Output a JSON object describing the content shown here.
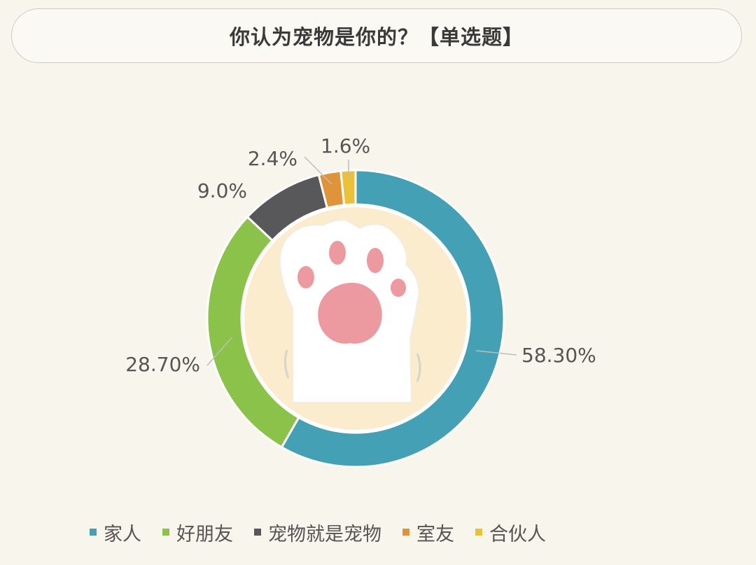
{
  "header": {
    "title": "你认为宠物是你的？【单选题】"
  },
  "chart_data": {
    "type": "pie",
    "variant": "donut",
    "legend_position": "bottom",
    "slices": [
      {
        "name": "家人",
        "value": 58.3,
        "label": "58.30%",
        "color": "#44a0b5"
      },
      {
        "name": "好朋友",
        "value": 28.7,
        "label": "28.70%",
        "color": "#8bc24a"
      },
      {
        "name": "宠物就是宠物",
        "value": 9.0,
        "label": "9.0%",
        "color": "#58585a"
      },
      {
        "name": "室友",
        "value": 2.4,
        "label": "2.4%",
        "color": "#e0943a"
      },
      {
        "name": "合伙人",
        "value": 1.6,
        "label": "1.6%",
        "color": "#ecc13a"
      }
    ]
  }
}
